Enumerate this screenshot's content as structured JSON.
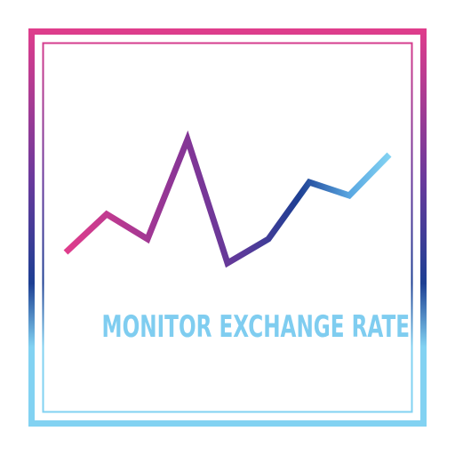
{
  "logo": {
    "caption": "MONITOR EXCHANGE RATE",
    "caption_color": "#7fcdf0",
    "gradient_colors": [
      "#e03d8c",
      "#6a3a9c",
      "#1d3f93",
      "#82d2f2"
    ],
    "icon": "line-graph-icon"
  }
}
